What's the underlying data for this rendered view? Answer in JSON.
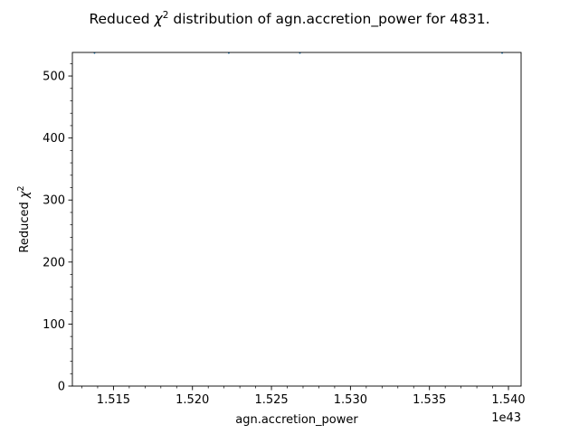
{
  "chart_data": {
    "type": "scatter",
    "title_main": "Reduced ",
    "title_symbol": "χ",
    "title_exponent": "2",
    "title_rest": " distribution of agn.accretion_power for 4831.",
    "xlabel": "agn.accretion_power",
    "x_offset_label": "1e43",
    "ylabel_main": "Reduced ",
    "ylabel_symbol": "χ",
    "ylabel_exponent": "2",
    "xlim": [
      1.5124,
      1.5408
    ],
    "ylim": [
      0,
      538
    ],
    "x_scale_factor": 1e+43,
    "x_ticks": [
      1.515,
      1.52,
      1.525,
      1.53,
      1.535,
      1.54
    ],
    "x_tick_labels": [
      "1.515",
      "1.520",
      "1.525",
      "1.530",
      "1.535",
      "1.540"
    ],
    "x_minor_step": 0.001,
    "y_ticks": [
      0,
      100,
      200,
      300,
      400,
      500
    ],
    "y_tick_labels": [
      "0",
      "100",
      "200",
      "300",
      "400",
      "500"
    ],
    "y_minor_step": 20,
    "grid": false,
    "points": [
      {
        "x": 1.5138,
        "y": 537
      },
      {
        "x": 1.5223,
        "y": 537
      },
      {
        "x": 1.5268,
        "y": 537
      },
      {
        "x": 1.5396,
        "y": 537
      }
    ],
    "point_color": "#1f77b4"
  }
}
